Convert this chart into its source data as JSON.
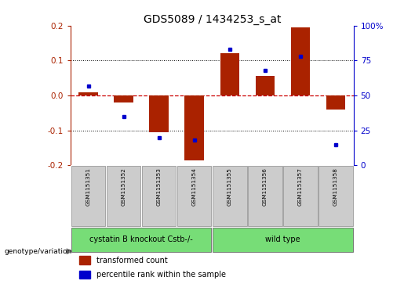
{
  "title": "GDS5089 / 1434253_s_at",
  "samples": [
    "GSM1151351",
    "GSM1151352",
    "GSM1151353",
    "GSM1151354",
    "GSM1151355",
    "GSM1151356",
    "GSM1151357",
    "GSM1151358"
  ],
  "transformed_count": [
    0.01,
    -0.02,
    -0.105,
    -0.185,
    0.12,
    0.055,
    0.195,
    -0.04
  ],
  "percentile_rank": [
    57,
    35,
    20,
    18,
    83,
    68,
    78,
    15
  ],
  "groups": [
    {
      "label": "cystatin B knockout Cstb-/-",
      "span": [
        0,
        3
      ],
      "color": "#77dd77"
    },
    {
      "label": "wild type",
      "span": [
        4,
        7
      ],
      "color": "#77dd77"
    }
  ],
  "group_row_label": "genotype/variation",
  "ylim": [
    -0.2,
    0.2
  ],
  "yticks_left": [
    -0.2,
    -0.1,
    0.0,
    0.1,
    0.2
  ],
  "yticks_right": [
    0,
    25,
    50,
    75,
    100
  ],
  "bar_color": "#aa2200",
  "dot_color": "#0000cc",
  "zero_line_color": "#cc0000",
  "dot_grid_color": "#000000",
  "bg_color": "#ffffff",
  "plot_bg": "#ffffff",
  "sample_box_color": "#cccccc",
  "title_fontsize": 10,
  "axis_fontsize": 7.5,
  "tick_fontsize": 7,
  "bar_width": 0.55
}
